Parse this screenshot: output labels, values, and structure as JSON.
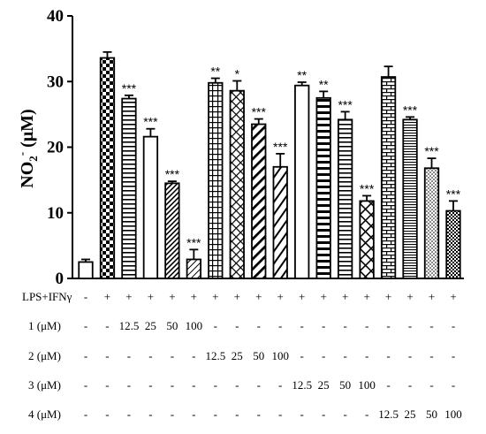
{
  "chart_data": {
    "type": "bar",
    "ylabel": "NO2- (μM)",
    "ylabel_main": "NO",
    "ylabel_sub": "2",
    "ylabel_sup": "-",
    "ylabel_unit": " (μM)",
    "ylim": [
      0,
      40
    ],
    "yticks": [
      "0",
      "10",
      "20",
      "30",
      "40"
    ],
    "grid": false,
    "values": [
      2.5,
      33.6,
      27.4,
      21.6,
      14.5,
      2.9,
      29.8,
      28.6,
      23.5,
      17.0,
      29.4,
      27.5,
      24.2,
      11.8,
      30.7,
      24.2,
      16.8,
      10.3
    ],
    "errors": [
      0.4,
      0.9,
      0.5,
      1.2,
      0.3,
      1.5,
      0.7,
      1.5,
      0.8,
      2.0,
      0.5,
      1.0,
      1.2,
      0.8,
      1.6,
      0.4,
      1.5,
      1.5
    ],
    "significance": [
      "",
      "",
      "***",
      "***",
      "***",
      "***",
      "**",
      "*",
      "***",
      "***",
      "**",
      "**",
      "***",
      "***",
      "",
      "***",
      "***",
      "***"
    ],
    "patterns": [
      "white",
      "checker",
      "hlines-wide",
      "white",
      "diag-dense",
      "diag-fine",
      "grid",
      "diamond",
      "diag-wide",
      "diag-right",
      "white",
      "hbars",
      "hlines-wide",
      "crosshatch",
      "brick",
      "hlines-thin",
      "dots",
      "checker-fine"
    ],
    "treatment_table": {
      "rows": [
        {
          "label": "LPS+IFNγ",
          "cells": [
            "-",
            "+",
            "+",
            "+",
            "+",
            "+",
            "+",
            "+",
            "+",
            "+",
            "+",
            "+",
            "+",
            "+",
            "+",
            "+",
            "+",
            "+"
          ]
        },
        {
          "label": "1 (μM)",
          "cells": [
            "-",
            "-",
            "12.5",
            "25",
            "50",
            "100",
            "-",
            "-",
            "-",
            "-",
            "-",
            "-",
            "-",
            "-",
            "-",
            "-",
            "-",
            "-"
          ]
        },
        {
          "label": "2 (μM)",
          "cells": [
            "-",
            "-",
            "-",
            "-",
            "-",
            "-",
            "12.5",
            "25",
            "50",
            "100",
            "-",
            "-",
            "-",
            "-",
            "-",
            "-",
            "-",
            "-"
          ]
        },
        {
          "label": "3 (μM)",
          "cells": [
            "-",
            "-",
            "-",
            "-",
            "-",
            "-",
            "-",
            "-",
            "-",
            "-",
            "12.5",
            "25",
            "50",
            "100",
            "-",
            "-",
            "-",
            "-"
          ]
        },
        {
          "label": "4 (μM)",
          "cells": [
            "-",
            "-",
            "-",
            "-",
            "-",
            "-",
            "-",
            "-",
            "-",
            "-",
            "-",
            "-",
            "-",
            "-",
            "12.5",
            "25",
            "50",
            "100"
          ]
        }
      ]
    }
  }
}
